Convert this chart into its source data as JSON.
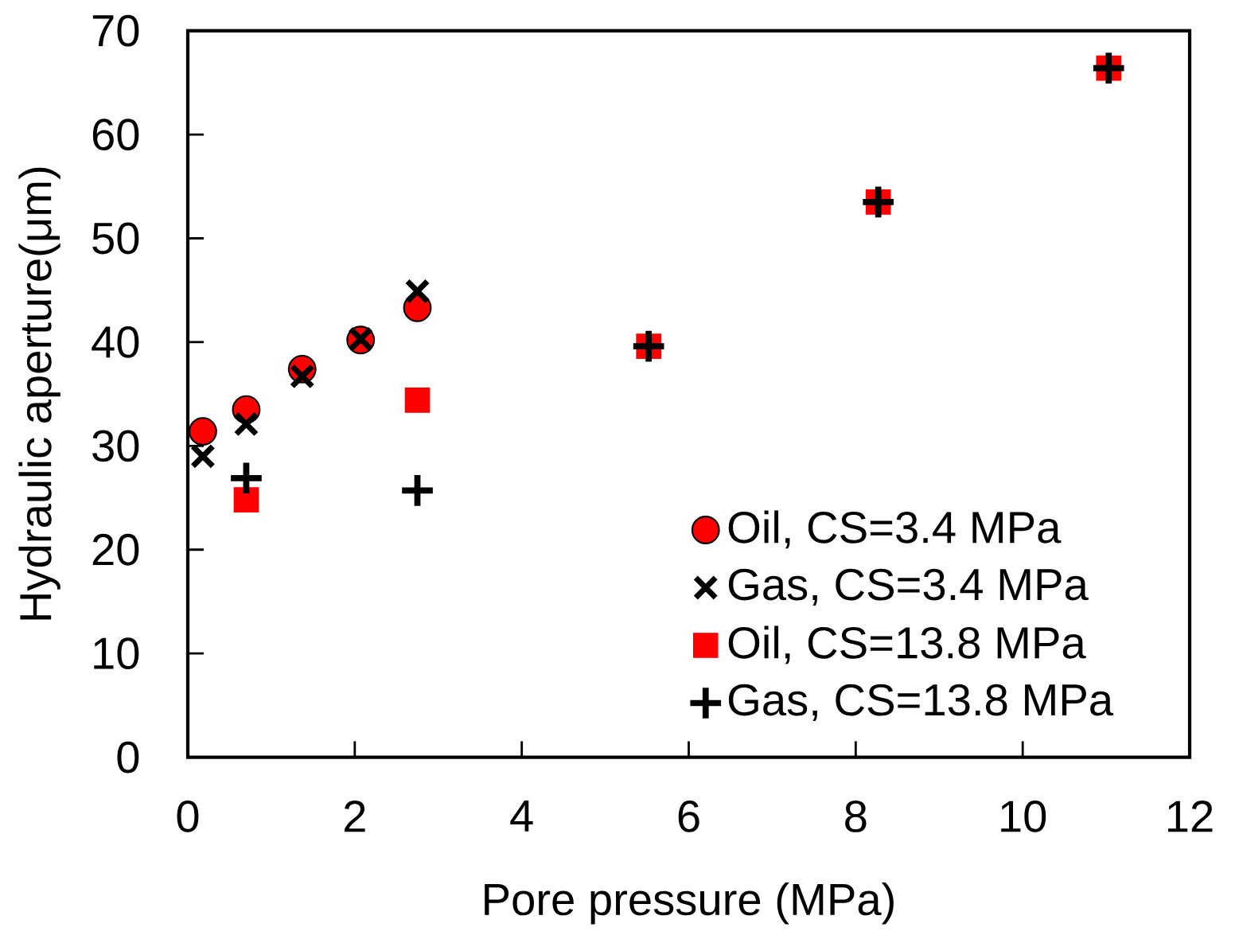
{
  "chart_data": {
    "type": "scatter",
    "xlabel": "Pore pressure (MPa)",
    "ylabel": "Hydraulic aperture(μm)",
    "xlim": [
      0,
      12
    ],
    "ylim": [
      0,
      70
    ],
    "xticks": [
      0,
      2,
      4,
      6,
      8,
      10,
      12
    ],
    "yticks": [
      0,
      10,
      20,
      30,
      40,
      50,
      60,
      70
    ],
    "legend": "bottom right",
    "series": [
      {
        "name": "Oil, CS=3.4 MPa",
        "color": "#ff0000",
        "marker": "circle",
        "x": [
          0.18,
          0.7,
          1.37,
          2.07,
          2.75
        ],
        "values": [
          31.4,
          33.5,
          37.4,
          40.2,
          43.3
        ]
      },
      {
        "name": "Gas, CS=3.4 MPa",
        "color": "#000000",
        "marker": "cross",
        "x": [
          0.18,
          0.7,
          1.37,
          2.07,
          2.75
        ],
        "values": [
          29.0,
          32.1,
          36.7,
          40.3,
          44.9
        ]
      },
      {
        "name": "Oil, CS=13.8 MPa",
        "color": "#ff0000",
        "marker": "square",
        "x": [
          0.7,
          2.75,
          5.52,
          8.27,
          11.03
        ],
        "values": [
          24.8,
          34.4,
          39.6,
          53.5,
          66.4
        ]
      },
      {
        "name": "Gas, CS=13.8 MPa",
        "color": "#000000",
        "marker": "cross",
        "x": [
          0.7,
          2.75,
          5.52,
          8.27,
          11.03
        ],
        "values": [
          26.9,
          25.7,
          39.6,
          53.5,
          66.4
        ]
      }
    ]
  }
}
